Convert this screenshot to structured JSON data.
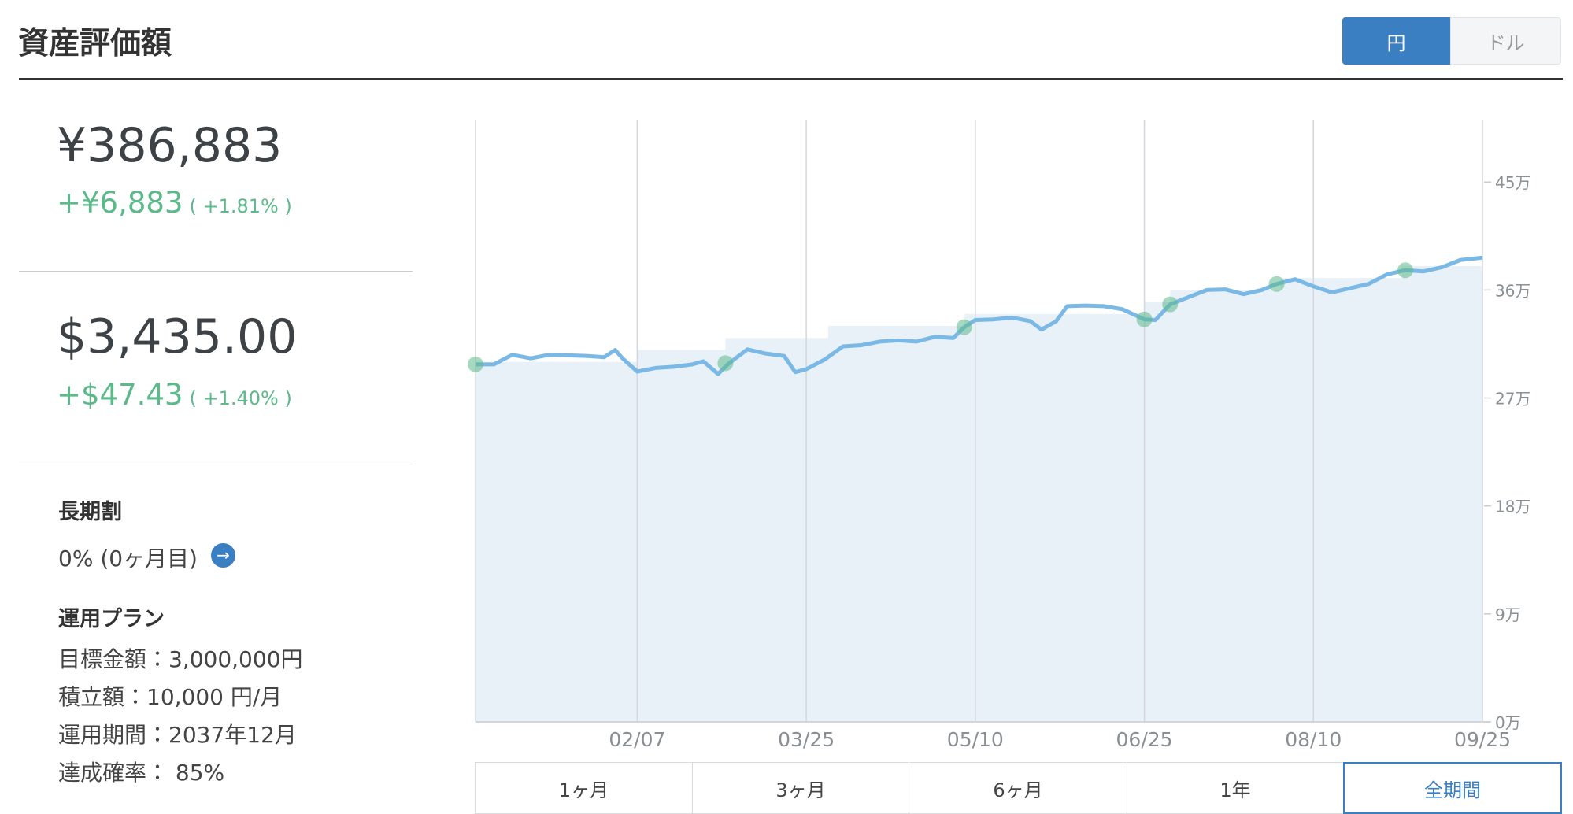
{
  "header": {
    "title": "資産評価額",
    "currency_toggle": [
      "円",
      "ドル"
    ],
    "active_currency": 0
  },
  "summary": {
    "jpy": {
      "value": "¥386,883",
      "change": "+¥6,883",
      "pct": "( +1.81% )"
    },
    "usd": {
      "value": "$3,435.00",
      "change": "+$47.43",
      "pct": "( +1.40% )"
    }
  },
  "long_term": {
    "title": "長期割",
    "value": "0% (0ヶ月目)"
  },
  "plan": {
    "title": "運用プラン",
    "items": [
      "目標金額：3,000,000円",
      "積立額：10,000 円/月",
      "運用期間：2037年12月",
      "達成確率： 85%"
    ]
  },
  "chart_data": {
    "type": "line",
    "xlim": [
      "12/25",
      "09/25"
    ],
    "xticks": [
      "02/07",
      "03/25",
      "05/10",
      "06/25",
      "08/10",
      "09/25"
    ],
    "ylim": [
      0,
      500000
    ],
    "yticks": [
      {
        "value": 0,
        "label": "0万"
      },
      {
        "value": 90000,
        "label": "9万"
      },
      {
        "value": 180000,
        "label": "18万"
      },
      {
        "value": 270000,
        "label": "27万"
      },
      {
        "value": 360000,
        "label": "36万"
      },
      {
        "value": 450000,
        "label": "45万"
      }
    ],
    "grid": true,
    "series": [
      {
        "color": "#7ab8e6",
        "x": [
          "12/25",
          "12/30",
          "01/04",
          "01/09",
          "01/14",
          "01/19",
          "01/24",
          "01/29",
          "02/01",
          "02/03",
          "02/07",
          "02/12",
          "02/17",
          "02/22",
          "02/25",
          "03/01",
          "03/04",
          "03/09",
          "03/14",
          "03/19",
          "03/22",
          "03/25",
          "03/30",
          "04/04",
          "04/09",
          "04/14",
          "04/19",
          "04/24",
          "04/29",
          "05/04",
          "05/07",
          "05/10",
          "05/15",
          "05/20",
          "05/25",
          "05/28",
          "06/01",
          "06/04",
          "06/09",
          "06/14",
          "06/19",
          "06/25",
          "06/28",
          "07/02",
          "07/07",
          "07/12",
          "07/17",
          "07/22",
          "07/27",
          "07/31",
          "08/05",
          "08/10",
          "08/15",
          "08/20",
          "08/25",
          "08/30",
          "09/04",
          "09/09",
          "09/14",
          "09/19",
          "09/25"
        ],
        "values": [
          298000,
          298000,
          306000,
          303000,
          306000,
          305500,
          305000,
          304000,
          310000,
          303000,
          292000,
          295000,
          296000,
          298000,
          300500,
          290000,
          299000,
          310500,
          307000,
          305000,
          291500,
          294000,
          302000,
          313000,
          314000,
          317000,
          318000,
          317000,
          321000,
          320000,
          329000,
          335000,
          335500,
          337000,
          334000,
          327000,
          334000,
          346500,
          347000,
          346500,
          344000,
          335500,
          335000,
          348000,
          354000,
          360000,
          360500,
          356500,
          360000,
          365000,
          369000,
          363000,
          358000,
          361500,
          365000,
          373000,
          376500,
          375500,
          379000,
          385000,
          387000
        ]
      },
      {
        "color": "#e8f0f8",
        "step": true,
        "x": [
          "12/25",
          "02/07",
          "03/03",
          "03/31",
          "05/07",
          "06/25",
          "07/02",
          "08/01",
          "09/03"
        ],
        "values": [
          300000,
          310000,
          320000,
          330000,
          340000,
          350000,
          360000,
          370000,
          380000
        ]
      },
      {
        "color": "#5cb98a",
        "markers": true,
        "x": [
          "12/25",
          "03/03",
          "05/07",
          "06/25",
          "07/02",
          "07/31",
          "09/04"
        ],
        "values": [
          298000,
          299000,
          329000,
          335500,
          348000,
          365000,
          376500
        ]
      }
    ]
  },
  "period_buttons": {
    "labels": [
      "1ヶ月",
      "3ヶ月",
      "6ヶ月",
      "1年",
      "全期間"
    ],
    "active": 4
  }
}
